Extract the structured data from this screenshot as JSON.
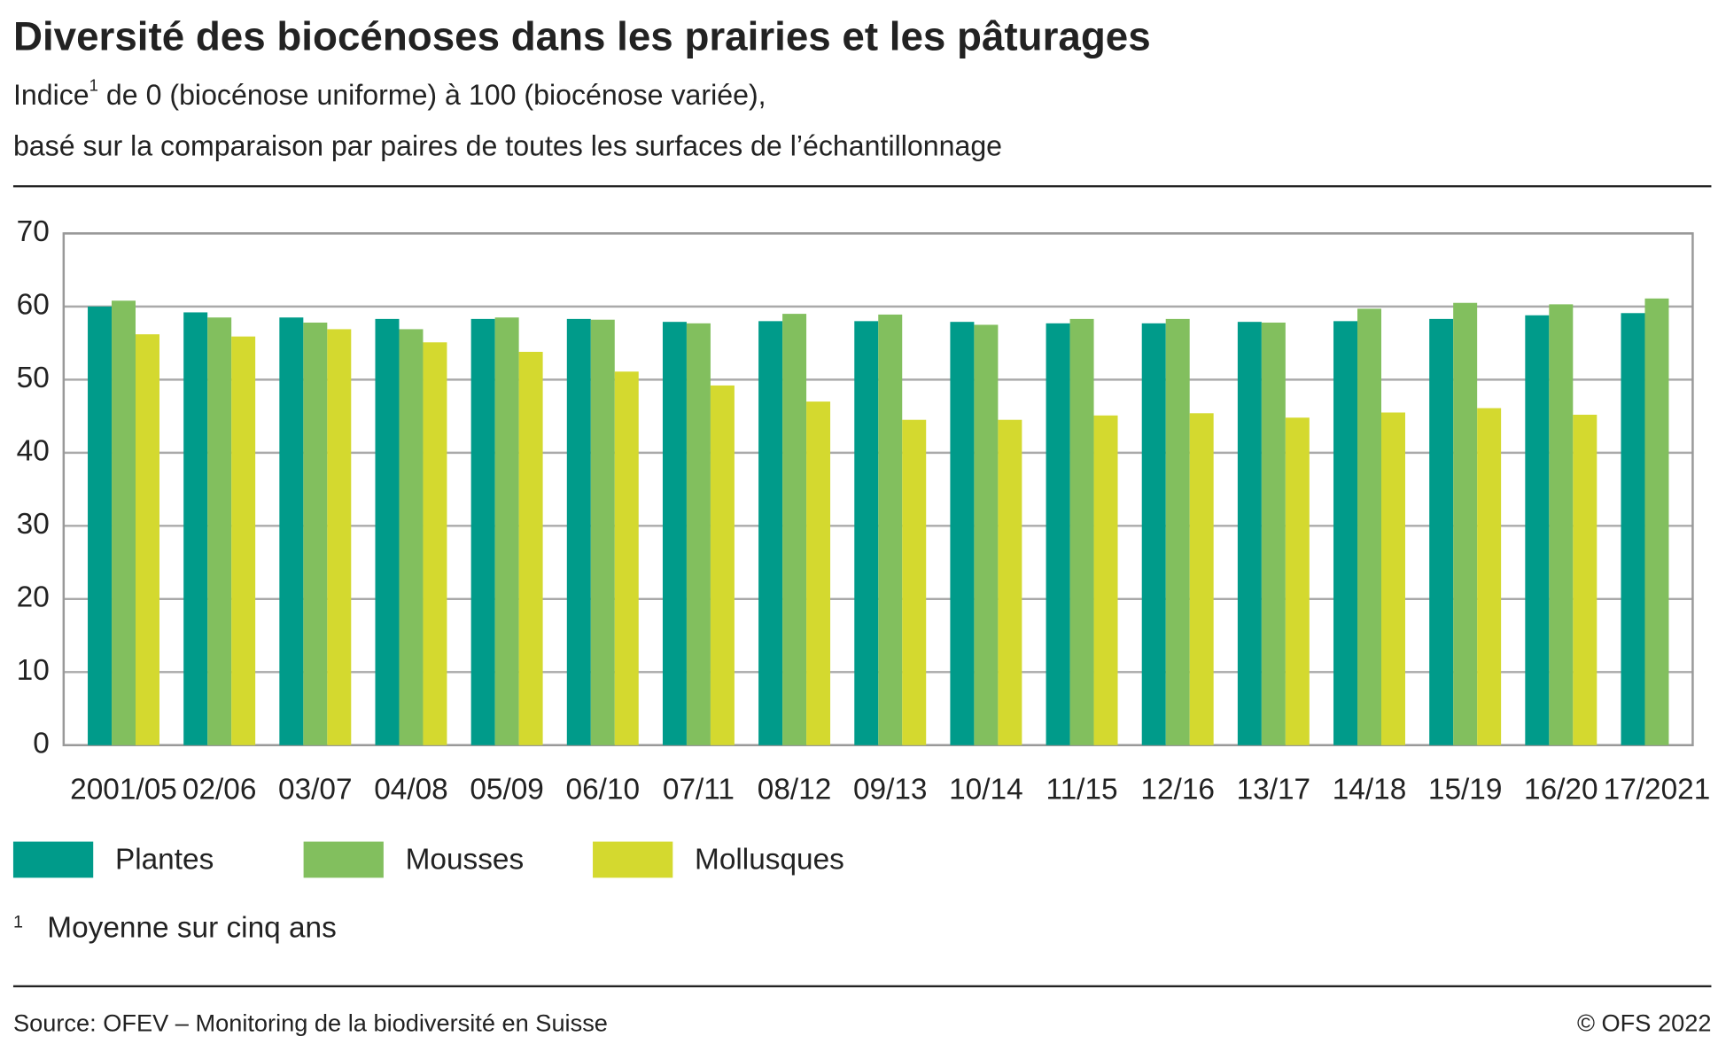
{
  "chart_data": {
    "type": "bar",
    "title": "Diversité des biocénoses dans les prairies et les pâturages",
    "subtitle_parts": [
      "Indice",
      "1",
      " de 0 (biocénose uniforme) à 100 (biocénose variée),"
    ],
    "subtitle_line2": "basé sur la comparaison par paires de toutes les surfaces de l’échantillonnage",
    "categories": [
      "2001/05",
      "02/06",
      "03/07",
      "04/08",
      "05/09",
      "06/10",
      "07/11",
      "08/12",
      "09/13",
      "10/14",
      "11/15",
      "12/16",
      "13/17",
      "14/18",
      "15/19",
      "16/20",
      "17/2021"
    ],
    "series": [
      {
        "name": "Plantes",
        "color": "#009b8a",
        "values": [
          60.0,
          59.2,
          58.5,
          58.3,
          58.3,
          58.3,
          57.9,
          58.0,
          58.0,
          57.9,
          57.7,
          57.7,
          57.9,
          58.0,
          58.3,
          58.8,
          59.1
        ]
      },
      {
        "name": "Mousses",
        "color": "#82bf5e",
        "values": [
          60.8,
          58.5,
          57.8,
          56.9,
          58.5,
          58.2,
          57.7,
          59.0,
          58.9,
          57.5,
          58.3,
          58.3,
          57.8,
          59.7,
          60.5,
          60.3,
          61.1
        ]
      },
      {
        "name": "Mollusques",
        "color": "#d4d92f",
        "values": [
          56.2,
          55.9,
          56.9,
          55.1,
          53.8,
          51.1,
          49.2,
          47.0,
          44.5,
          44.5,
          45.1,
          45.4,
          44.8,
          45.5,
          46.1,
          45.2,
          null
        ]
      }
    ],
    "ylim": [
      0,
      70
    ],
    "yticks": [
      0,
      10,
      20,
      30,
      40,
      50,
      60,
      70
    ],
    "grid": true,
    "footnote_mark": "1",
    "footnote": "Moyenne sur cinq ans",
    "source": "Source: OFEV – Monitoring de la biodiversité en Suisse",
    "copyright": "© OFS 2022"
  }
}
